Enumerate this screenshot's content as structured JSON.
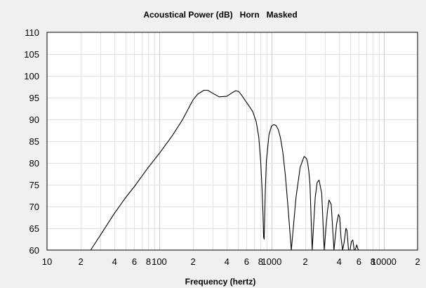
{
  "chart_data": {
    "type": "line",
    "title": "Acoustical Power (dB)   Horn   Masked",
    "xlabel": "Frequency (hertz)",
    "ylabel": "",
    "x_scale": "log",
    "xlim": [
      10,
      20000
    ],
    "ylim": [
      60,
      110
    ],
    "grid": true,
    "x_ticks": [
      {
        "value": 10,
        "label": "10"
      },
      {
        "value": 20,
        "label": "2"
      },
      {
        "value": 40,
        "label": "4"
      },
      {
        "value": 60,
        "label": "6"
      },
      {
        "value": 80,
        "label": "8"
      },
      {
        "value": 100,
        "label": "100"
      },
      {
        "value": 200,
        "label": "2"
      },
      {
        "value": 400,
        "label": "4"
      },
      {
        "value": 600,
        "label": "6"
      },
      {
        "value": 800,
        "label": "8"
      },
      {
        "value": 1000,
        "label": "1000"
      },
      {
        "value": 2000,
        "label": "2"
      },
      {
        "value": 4000,
        "label": "4"
      },
      {
        "value": 6000,
        "label": "6"
      },
      {
        "value": 8000,
        "label": "8"
      },
      {
        "value": 10000,
        "label": "10000"
      },
      {
        "value": 20000,
        "label": "2"
      }
    ],
    "y_ticks": [
      {
        "value": 60,
        "label": "60"
      },
      {
        "value": 65,
        "label": "65"
      },
      {
        "value": 70,
        "label": "70"
      },
      {
        "value": 75,
        "label": "75"
      },
      {
        "value": 80,
        "label": "80"
      },
      {
        "value": 85,
        "label": "85"
      },
      {
        "value": 90,
        "label": "90"
      },
      {
        "value": 95,
        "label": "95"
      },
      {
        "value": 100,
        "label": "100"
      },
      {
        "value": 105,
        "label": "105"
      },
      {
        "value": 110,
        "label": "110"
      }
    ],
    "series": [
      {
        "x": [
          24.5,
          30,
          40,
          50,
          60,
          80,
          100,
          130,
          160,
          200,
          220,
          250,
          270,
          300,
          340,
          400,
          450,
          480,
          510,
          540,
          580,
          630,
          680,
          730,
          770,
          800,
          820,
          840,
          850,
          860,
          870,
          880,
          900,
          950,
          1000,
          1050,
          1100,
          1150,
          1200,
          1260,
          1330,
          1400,
          1500,
          1650,
          1800,
          1950,
          2050,
          2100,
          2150,
          2200,
          2300,
          2450,
          2550,
          2650,
          2800,
          2950,
          3050,
          3150,
          3250,
          3400,
          3600,
          3800,
          3950,
          4050,
          4150,
          4300,
          4450,
          4600,
          4700,
          4850,
          5000,
          5150,
          5300,
          5450,
          5550,
          5650,
          5750,
          5850,
          5950,
          6050,
          6150,
          6300,
          6450,
          6550,
          6650,
          6750,
          6850,
          6950,
          7050,
          7150,
          7300,
          7400,
          7500,
          7600,
          7700,
          7800,
          7900,
          8000,
          8100,
          8300
        ],
        "y": [
          60,
          63.5,
          68.5,
          72,
          74.6,
          79,
          82.2,
          86.2,
          89.8,
          94.5,
          95.8,
          96.7,
          96.7,
          96,
          95.2,
          95.3,
          96.2,
          96.6,
          96.4,
          95.6,
          94.4,
          93.1,
          91.8,
          89.5,
          86,
          80.5,
          75,
          68,
          63,
          62.5,
          68,
          73.5,
          80.5,
          86.5,
          88.5,
          88.8,
          88.6,
          87.6,
          85.8,
          82.5,
          77,
          70,
          60,
          72,
          79,
          81.5,
          81,
          80,
          78,
          75,
          60,
          72,
          75.5,
          76.1,
          73,
          60,
          65,
          69,
          71.5,
          70.5,
          60,
          66,
          68.2,
          67.5,
          63,
          60,
          62,
          65,
          64.5,
          60,
          60,
          62,
          62.3,
          60,
          60,
          60.6,
          61.2,
          60.4,
          60,
          60,
          60,
          60,
          60,
          60,
          60,
          60,
          60,
          60,
          60,
          60,
          60,
          60,
          60,
          60,
          60,
          60,
          60,
          60,
          60,
          60
        ]
      }
    ]
  }
}
